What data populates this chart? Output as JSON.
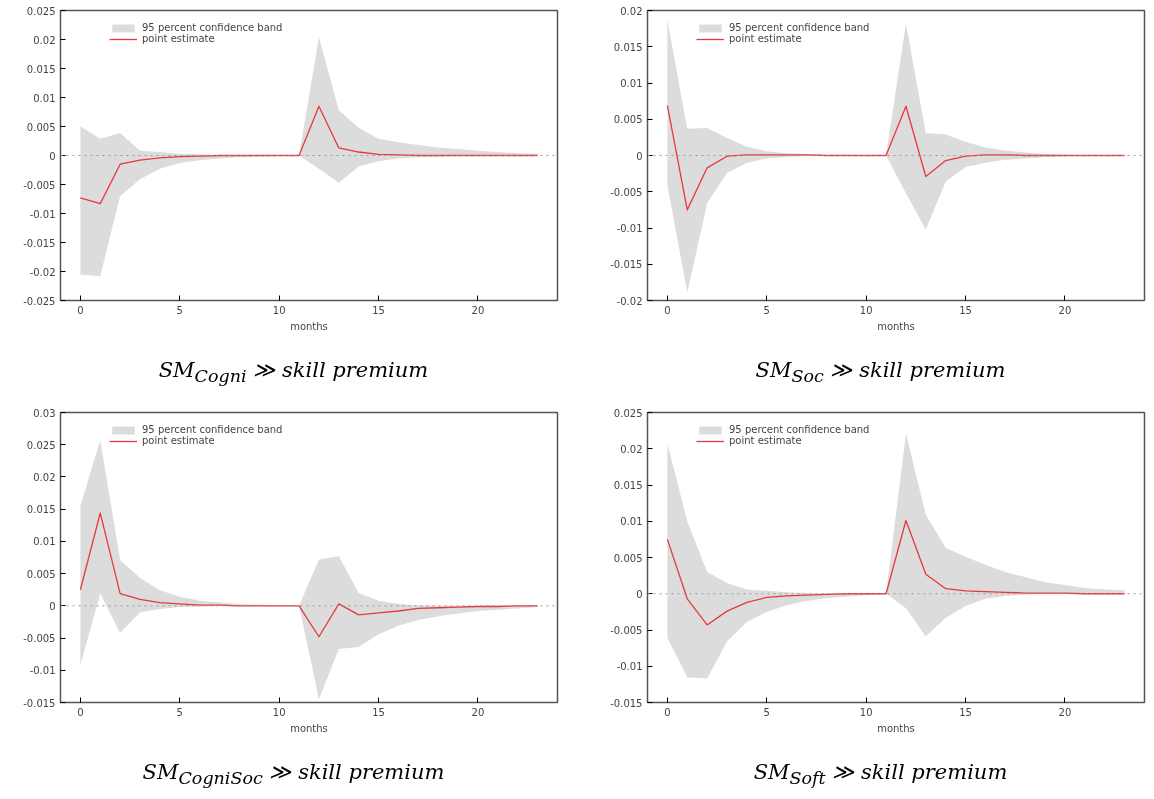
{
  "chart_data": [
    {
      "type": "line",
      "title": "SM$_{Cogni}$ ≫ skill premium",
      "xlabel": "months",
      "x": [
        0,
        1,
        2,
        3,
        4,
        5,
        6,
        7,
        8,
        9,
        10,
        11,
        12,
        13,
        14,
        15,
        16,
        17,
        18,
        19,
        20,
        21,
        22,
        23
      ],
      "xlim": [
        -1,
        24
      ],
      "xticks": [
        0,
        5,
        10,
        15,
        20
      ],
      "ylim": [
        -0.025,
        0.025
      ],
      "yticks": [
        -0.025,
        -0.02,
        -0.015,
        -0.01,
        -0.005,
        0,
        0.005,
        0.01,
        0.015,
        0.02,
        0.025
      ],
      "grid": false,
      "legend": "top left",
      "series": [
        {
          "name": "point estimate",
          "color": "#e8383d",
          "values": [
            -0.0073,
            -0.0083,
            -0.0015,
            -0.0008,
            -0.0004,
            -0.0002,
            -0.0001,
            0,
            0,
            0,
            0,
            0,
            0.0085,
            0.0013,
            0.0006,
            0.0002,
            0.0001,
            0,
            0,
            0,
            0,
            0,
            0,
            0
          ],
          "upper": [
            0.005,
            0.0029,
            0.0039,
            0.0008,
            0.0006,
            0.0003,
            0.0002,
            0.0001,
            0,
            0,
            0,
            0,
            0.0204,
            0.0078,
            0.0048,
            0.0029,
            0.0023,
            0.0018,
            0.0014,
            0.0011,
            0.0008,
            0.0006,
            0.0004,
            0.0003
          ],
          "lower": [
            -0.0205,
            -0.0208,
            -0.007,
            -0.0041,
            -0.0023,
            -0.0013,
            -0.0008,
            -0.0005,
            -0.0003,
            -0.0002,
            -0.0001,
            0,
            -0.0023,
            -0.0047,
            -0.0019,
            -0.001,
            -0.0005,
            -0.0003,
            -0.0002,
            -0.0001,
            -0.0001,
            0,
            0,
            0
          ]
        },
        {
          "type": "area",
          "name": "95 percent confidence band",
          "color": "#dcdcdc",
          "values": [
            null,
            null,
            null,
            null,
            null,
            null,
            null,
            null,
            null,
            null,
            null,
            null,
            null,
            null,
            null,
            null,
            null,
            null,
            null,
            null,
            null,
            null,
            null,
            null
          ]
        }
      ],
      "ref_lines": [
        {
          "axis": "y",
          "value": 0,
          "color": "#999999",
          "line_style": "dotted"
        }
      ]
    },
    {
      "type": "line",
      "title": "SM$_{Soc}$ ≫ skill premium",
      "xlabel": "months",
      "x": [
        0,
        1,
        2,
        3,
        4,
        5,
        6,
        7,
        8,
        9,
        10,
        11,
        12,
        13,
        14,
        15,
        16,
        17,
        18,
        19,
        20,
        21,
        22,
        23
      ],
      "xlim": [
        -1,
        24
      ],
      "xticks": [
        0,
        5,
        10,
        15,
        20
      ],
      "ylim": [
        -0.02,
        0.02
      ],
      "yticks": [
        -0.02,
        -0.015,
        -0.01,
        -0.005,
        0,
        0.005,
        0.01,
        0.015,
        0.02
      ],
      "grid": false,
      "legend": "top left",
      "series": [
        {
          "name": "point estimate",
          "color": "#e8383d",
          "values": [
            0.0069,
            -0.0075,
            -0.0017,
            -0.0001,
            0.0001,
            0.0001,
            0.0001,
            0.0001,
            0,
            0,
            0,
            0,
            0.0068,
            -0.0029,
            -0.0007,
            -0.0001,
            0.0001,
            0.0001,
            0,
            0,
            0,
            0,
            0,
            0
          ],
          "upper": [
            0.0187,
            0.0037,
            0.0038,
            0.0024,
            0.0012,
            0.0006,
            0.0003,
            0.0002,
            0.0001,
            0.0001,
            0,
            0,
            0.0182,
            0.0031,
            0.0029,
            0.0019,
            0.0011,
            0.0007,
            0.0004,
            0.0002,
            0.0001,
            0,
            0,
            0
          ],
          "lower": [
            -0.0041,
            -0.0189,
            -0.0066,
            -0.0024,
            -0.001,
            -0.0004,
            -0.0002,
            -0.0001,
            0,
            0,
            0,
            0,
            -0.0052,
            -0.0102,
            -0.0036,
            -0.0016,
            -0.001,
            -0.0006,
            -0.0004,
            -0.0002,
            -0.0001,
            0,
            0,
            0
          ]
        },
        {
          "type": "area",
          "name": "95 percent confidence band",
          "color": "#dcdcdc",
          "values": [
            null,
            null,
            null,
            null,
            null,
            null,
            null,
            null,
            null,
            null,
            null,
            null,
            null,
            null,
            null,
            null,
            null,
            null,
            null,
            null,
            null,
            null,
            null,
            null
          ]
        }
      ],
      "ref_lines": [
        {
          "axis": "y",
          "value": 0,
          "color": "#999999",
          "line_style": "dotted"
        }
      ]
    },
    {
      "type": "line",
      "title": "SM$_{CogniSoc}$ ≫ skill premium",
      "xlabel": "months",
      "x": [
        0,
        1,
        2,
        3,
        4,
        5,
        6,
        7,
        8,
        9,
        10,
        11,
        12,
        13,
        14,
        15,
        16,
        17,
        18,
        19,
        20,
        21,
        22,
        23
      ],
      "xlim": [
        -1,
        24
      ],
      "xticks": [
        0,
        5,
        10,
        15,
        20
      ],
      "ylim": [
        -0.015,
        0.03
      ],
      "yticks": [
        -0.015,
        -0.01,
        -0.005,
        0,
        0.005,
        0.01,
        0.015,
        0.02,
        0.025,
        0.03
      ],
      "grid": false,
      "legend": "top left",
      "series": [
        {
          "name": "point estimate",
          "color": "#e8383d",
          "values": [
            0.0025,
            0.0144,
            0.0019,
            0.001,
            0.0005,
            0.0003,
            0.0001,
            0.0001,
            0,
            0,
            0,
            0,
            -0.0048,
            0.0003,
            -0.0014,
            -0.0011,
            -0.0008,
            -0.0004,
            -0.0003,
            -0.0002,
            -0.0001,
            -0.0001,
            0,
            0
          ],
          "upper": [
            0.0155,
            0.0257,
            0.0071,
            0.0043,
            0.0024,
            0.0014,
            0.0008,
            0.0005,
            0.0003,
            0.0002,
            0.0001,
            0,
            0.0072,
            0.0077,
            0.002,
            0.0008,
            0.0003,
            0.0001,
            0,
            0,
            0,
            0,
            0,
            0
          ],
          "lower": [
            -0.0092,
            0.0019,
            -0.0042,
            -0.001,
            -0.0005,
            -0.0002,
            -0.0001,
            0,
            0,
            0,
            0,
            0,
            -0.0145,
            -0.0067,
            -0.0064,
            -0.0044,
            -0.0031,
            -0.0022,
            -0.0016,
            -0.0012,
            -0.0008,
            -0.0006,
            -0.0004,
            -0.0002
          ]
        },
        {
          "type": "area",
          "name": "95 percent confidence band",
          "color": "#dcdcdc",
          "values": [
            null,
            null,
            null,
            null,
            null,
            null,
            null,
            null,
            null,
            null,
            null,
            null,
            null,
            null,
            null,
            null,
            null,
            null,
            null,
            null,
            null,
            null,
            null,
            null
          ]
        }
      ],
      "ref_lines": [
        {
          "axis": "y",
          "value": 0,
          "color": "#999999",
          "line_style": "dotted"
        }
      ]
    },
    {
      "type": "line",
      "title": "SM$_{Soft}$ ≫ skill premium",
      "xlabel": "months",
      "x": [
        0,
        1,
        2,
        3,
        4,
        5,
        6,
        7,
        8,
        9,
        10,
        11,
        12,
        13,
        14,
        15,
        16,
        17,
        18,
        19,
        20,
        21,
        22,
        23
      ],
      "xlim": [
        -1,
        24
      ],
      "xticks": [
        0,
        5,
        10,
        15,
        20
      ],
      "ylim": [
        -0.015,
        0.025
      ],
      "yticks": [
        -0.015,
        -0.01,
        -0.005,
        0,
        0.005,
        0.01,
        0.015,
        0.02,
        0.025
      ],
      "grid": false,
      "legend": "top left",
      "series": [
        {
          "name": "point estimate",
          "color": "#e8383d",
          "values": [
            0.0075,
            -0.0007,
            -0.0043,
            -0.0024,
            -0.0012,
            -0.0005,
            -0.0003,
            -0.0002,
            -0.0001,
            0,
            0,
            0,
            0.0101,
            0.0027,
            0.0007,
            0.0004,
            0.0003,
            0.0002,
            0.0001,
            0.0001,
            0.0001,
            0,
            0,
            0
          ],
          "upper": [
            0.0207,
            0.01,
            0.003,
            0.0015,
            0.0006,
            0.0004,
            0.0002,
            0.0001,
            0,
            0,
            0,
            0,
            0.0221,
            0.0109,
            0.0063,
            0.0051,
            0.004,
            0.003,
            0.0023,
            0.0016,
            0.0012,
            0.0008,
            0.0006,
            0.0005
          ],
          "lower": [
            -0.0061,
            -0.0115,
            -0.0117,
            -0.0066,
            -0.0039,
            -0.0025,
            -0.0016,
            -0.001,
            -0.0006,
            -0.0004,
            -0.0002,
            0,
            -0.002,
            -0.0059,
            -0.0033,
            -0.0017,
            -0.0007,
            -0.0003,
            -0.0001,
            0,
            0,
            0,
            0,
            0
          ]
        },
        {
          "type": "area",
          "name": "95 percent confidence band",
          "color": "#dcdcdc",
          "values": [
            null,
            null,
            null,
            null,
            null,
            null,
            null,
            null,
            null,
            null,
            null,
            null,
            null,
            null,
            null,
            null,
            null,
            null,
            null,
            null,
            null,
            null,
            null,
            null
          ]
        }
      ],
      "ref_lines": [
        {
          "axis": "y",
          "value": 0,
          "color": "#999999",
          "line_style": "dotted"
        }
      ]
    }
  ]
}
